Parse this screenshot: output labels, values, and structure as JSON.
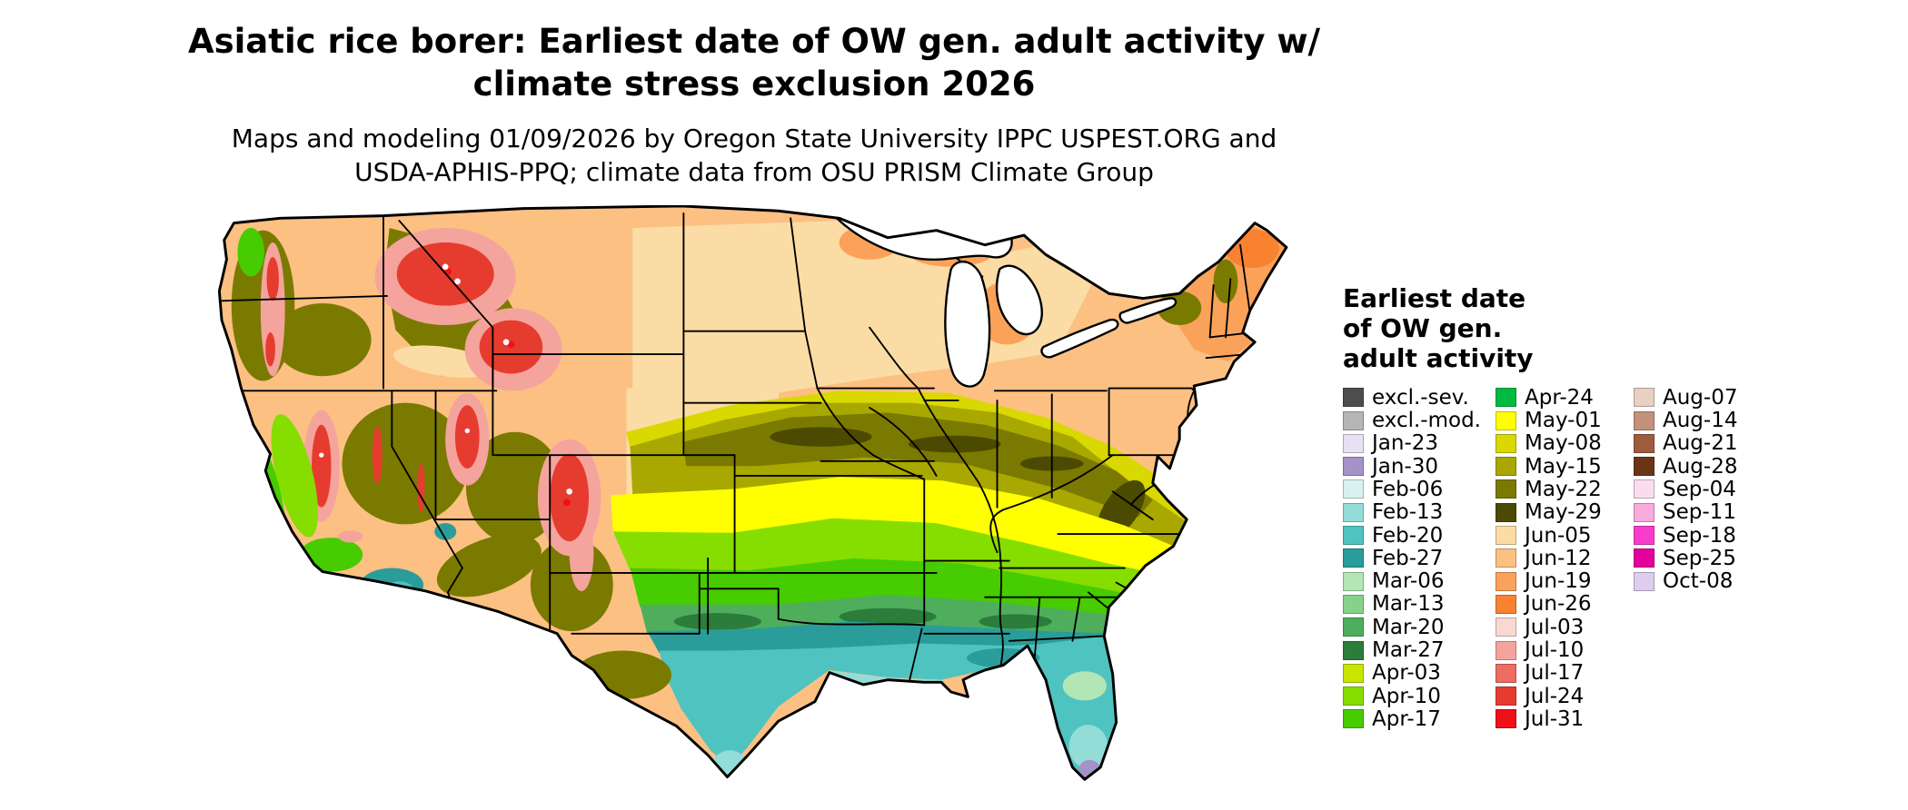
{
  "title": {
    "line1": "Asiatic rice borer: Earliest date of OW gen. adult activity w/",
    "line2": "climate stress exclusion 2026"
  },
  "subtitle": {
    "line1": "Maps and modeling 01/09/2026 by Oregon State University IPPC USPEST.ORG and",
    "line2": "USDA-APHIS-PPQ; climate data from OSU PRISM Climate Group"
  },
  "legend": {
    "title_lines": [
      "Earliest date",
      "of OW gen.",
      "adult activity"
    ],
    "columns": [
      {
        "items": [
          {
            "label": "excl.-sev.",
            "color": "#4d4d4d"
          },
          {
            "label": "excl.-mod.",
            "color": "#b5b5b5"
          },
          {
            "label": "Jan-23",
            "color": "#e7e1f3"
          },
          {
            "label": "Jan-30",
            "color": "#a492c8"
          },
          {
            "label": "Feb-06",
            "color": "#d9f2ef"
          },
          {
            "label": "Feb-13",
            "color": "#93dcd7"
          },
          {
            "label": "Feb-20",
            "color": "#4fc3c0"
          },
          {
            "label": "Feb-27",
            "color": "#2a9d9a"
          },
          {
            "label": "Mar-06",
            "color": "#b2e6b4"
          },
          {
            "label": "Mar-13",
            "color": "#86d28b"
          },
          {
            "label": "Mar-20",
            "color": "#4fae5c"
          },
          {
            "label": "Mar-27",
            "color": "#2c7c3c"
          },
          {
            "label": "Apr-03",
            "color": "#c8e500"
          },
          {
            "label": "Apr-10",
            "color": "#86dd00"
          },
          {
            "label": "Apr-17",
            "color": "#46cc00"
          }
        ]
      },
      {
        "items": [
          {
            "label": "Apr-24",
            "color": "#00bb40"
          },
          {
            "label": "May-01",
            "color": "#ffff00"
          },
          {
            "label": "May-08",
            "color": "#d9d800"
          },
          {
            "label": "May-15",
            "color": "#a9a800"
          },
          {
            "label": "May-22",
            "color": "#7b7a00"
          },
          {
            "label": "May-29",
            "color": "#4c4a00"
          },
          {
            "label": "Jun-05",
            "color": "#fbdca4"
          },
          {
            "label": "Jun-12",
            "color": "#fcc083"
          },
          {
            "label": "Jun-19",
            "color": "#fba25a"
          },
          {
            "label": "Jun-26",
            "color": "#f98230"
          },
          {
            "label": "Jul-03",
            "color": "#fad8d2"
          },
          {
            "label": "Jul-10",
            "color": "#f4a49c"
          },
          {
            "label": "Jul-17",
            "color": "#ee6c62"
          },
          {
            "label": "Jul-24",
            "color": "#e63c30"
          },
          {
            "label": "Jul-31",
            "color": "#f01018"
          }
        ]
      },
      {
        "items": [
          {
            "label": "Aug-07",
            "color": "#e9cfc4"
          },
          {
            "label": "Aug-14",
            "color": "#c3917a"
          },
          {
            "label": "Aug-21",
            "color": "#9d5c3c"
          },
          {
            "label": "Aug-28",
            "color": "#6b3416"
          },
          {
            "label": "Sep-04",
            "color": "#fbdcee"
          },
          {
            "label": "Sep-11",
            "color": "#f8abdc"
          },
          {
            "label": "Sep-18",
            "color": "#fa3cce"
          },
          {
            "label": "Sep-25",
            "color": "#e2009e"
          },
          {
            "label": "Oct-08",
            "color": "#dfcdf0"
          }
        ]
      }
    ]
  }
}
